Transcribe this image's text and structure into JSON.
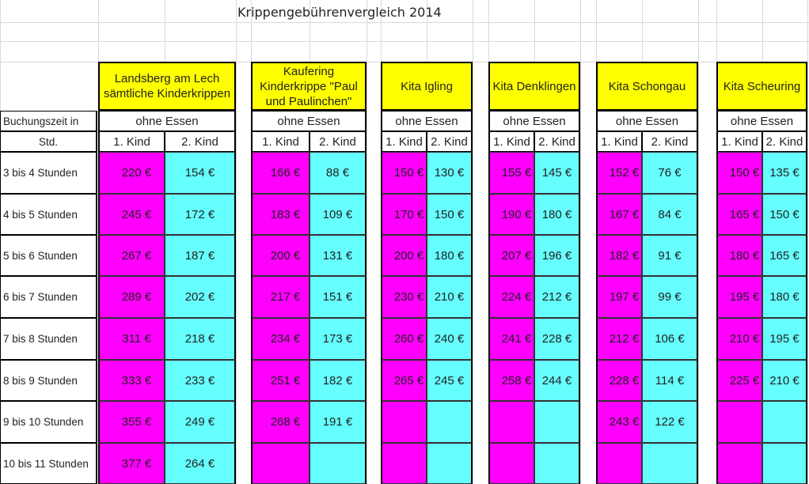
{
  "title": "Krippengebührenvergleich 2014",
  "row_label_header": {
    "line1": "Buchungszeit in",
    "line2": "Std."
  },
  "row_labels": [
    "3 bis 4 Stunden",
    "4 bis 5 Stunden",
    "5 bis 6 Stunden",
    "6 bis 7 Stunden",
    "7 bis 8 Stunden",
    "8 bis 9 Stunden",
    "9 bis 10 Stunden",
    "10 bis 11 Stunden"
  ],
  "facilities": [
    {
      "name": "Landsberg am Lech sämtliche Kinderkrippen",
      "meal": "ohne Essen",
      "child1_label": "1. Kind",
      "child2_label": "2. Kind",
      "child1": [
        "220 €",
        "245 €",
        "267 €",
        "289 €",
        "311 €",
        "333 €",
        "355 €",
        "377 €"
      ],
      "child2": [
        "154 €",
        "172 €",
        "187 €",
        "202 €",
        "218 €",
        "233 €",
        "249 €",
        "264 €"
      ]
    },
    {
      "name": "Kaufering Kinderkrippe \"Paul und Paulinchen\"",
      "meal": "ohne Essen",
      "child1_label": "1. Kind",
      "child2_label": "2. Kind",
      "child1": [
        "166 €",
        "183 €",
        "200 €",
        "217 €",
        "234 €",
        "251 €",
        "268 €",
        ""
      ],
      "child2": [
        "88 €",
        "109 €",
        "131 €",
        "151 €",
        "173 €",
        "182 €",
        "191 €",
        ""
      ]
    },
    {
      "name": "Kita Igling",
      "meal": "ohne Essen",
      "child1_label": "1. Kind",
      "child2_label": "2. Kind",
      "child1": [
        "150 €",
        "170 €",
        "200 €",
        "230 €",
        "260 €",
        "265 €",
        "",
        ""
      ],
      "child2": [
        "130 €",
        "150 €",
        "180 €",
        "210 €",
        "240 €",
        "245 €",
        "",
        ""
      ]
    },
    {
      "name": "Kita Denklingen",
      "meal": "ohne Essen",
      "child1_label": "1. Kind",
      "child2_label": "2. Kind",
      "child1": [
        "155 €",
        "190 €",
        "207 €",
        "224 €",
        "241 €",
        "258 €",
        "",
        ""
      ],
      "child2": [
        "145 €",
        "180 €",
        "196 €",
        "212 €",
        "228 €",
        "244 €",
        "",
        ""
      ]
    },
    {
      "name": "Kita Schongau",
      "meal": "ohne Essen",
      "child1_label": "1. Kind",
      "child2_label": "2. Kind",
      "child1": [
        "152 €",
        "167 €",
        "182 €",
        "197 €",
        "212 €",
        "228 €",
        "243 €",
        ""
      ],
      "child2": [
        "76 €",
        "84 €",
        "91 €",
        "99 €",
        "106 €",
        "114 €",
        "122 €",
        ""
      ]
    },
    {
      "name": "Kita Scheuring",
      "meal": "ohne Essen",
      "child1_label": "1. Kind",
      "child2_label": "2. Kind",
      "child1": [
        "150 €",
        "165 €",
        "180 €",
        "195 €",
        "210 €",
        "225 €",
        "",
        ""
      ],
      "child2": [
        "135 €",
        "150 €",
        "165 €",
        "180 €",
        "195 €",
        "210 €",
        "",
        ""
      ]
    }
  ]
}
